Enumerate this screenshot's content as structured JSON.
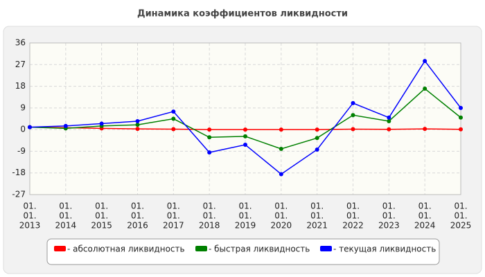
{
  "chart_data": {
    "type": "line",
    "title": "Динамика коэффициентов ликвидности",
    "categories": [
      [
        "01.",
        "01.",
        "2013"
      ],
      [
        "01.",
        "01.",
        "2014"
      ],
      [
        "01.",
        "01.",
        "2015"
      ],
      [
        "01.",
        "01.",
        "2016"
      ],
      [
        "01.",
        "01.",
        "2017"
      ],
      [
        "01.",
        "01.",
        "2018"
      ],
      [
        "01.",
        "01.",
        "2019"
      ],
      [
        "01.",
        "01.",
        "2020"
      ],
      [
        "01.",
        "01.",
        "2021"
      ],
      [
        "01.",
        "01.",
        "2022"
      ],
      [
        "01.",
        "01.",
        "2023"
      ],
      [
        "01.",
        "01.",
        "2024"
      ],
      [
        "01.",
        "01.",
        "2025"
      ]
    ],
    "series": [
      {
        "name": "- абсолютная ликвидность",
        "color": "#ff0000",
        "values": [
          1,
          0.8,
          0.5,
          0.3,
          0.2,
          0,
          0,
          0,
          0,
          0.2,
          0.1,
          0.3,
          0.1
        ]
      },
      {
        "name": "- быстрая ликвидность",
        "color": "#008000",
        "values": [
          1,
          0.5,
          1.5,
          2,
          4.5,
          -3.2,
          -2.8,
          -8,
          -3.5,
          6,
          3.5,
          17,
          5
        ]
      },
      {
        "name": "- текущая ликвидность",
        "color": "#0000ff",
        "values": [
          1,
          1.5,
          2.5,
          3.5,
          7.5,
          -9.5,
          -6.3,
          -18.5,
          -8.3,
          11,
          5,
          28.5,
          9
        ]
      }
    ],
    "ylim": [
      -27,
      36
    ],
    "yticks": [
      -27,
      -18,
      -9,
      0,
      9,
      18,
      27,
      36
    ],
    "grid": true
  }
}
